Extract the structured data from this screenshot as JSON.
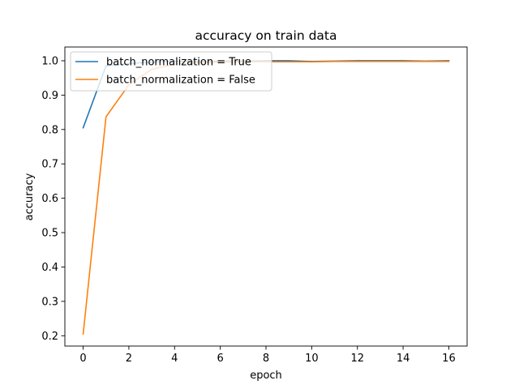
{
  "chart_data": {
    "type": "line",
    "title": "accuracy on train data",
    "xlabel": "epoch",
    "ylabel": "accuracy",
    "xlim": [
      -0.8,
      16.8
    ],
    "ylim": [
      0.17,
      1.04
    ],
    "x_ticks": [
      0,
      2,
      4,
      6,
      8,
      10,
      12,
      14,
      16
    ],
    "y_ticks": [
      0.2,
      0.3,
      0.4,
      0.5,
      0.6,
      0.7,
      0.8,
      0.9,
      1.0
    ],
    "y_tick_labels": [
      "0.2",
      "0.3",
      "0.4",
      "0.5",
      "0.6",
      "0.7",
      "0.8",
      "0.9",
      "1.0"
    ],
    "grid": false,
    "legend_position": "top-left",
    "x": [
      0,
      1,
      2,
      3,
      4,
      5,
      6,
      7,
      8,
      9,
      10,
      11,
      12,
      13,
      14,
      15,
      16
    ],
    "series": [
      {
        "name": "batch_normalization = True",
        "color": "#1f77b4",
        "values": [
          0.805,
          0.985,
          0.992,
          0.996,
          0.998,
          0.998,
          0.999,
          0.999,
          1.0,
          1.0,
          0.998,
          0.999,
          1.0,
          1.0,
          1.0,
          0.999,
          1.0
        ]
      },
      {
        "name": "batch_normalization = False",
        "color": "#ff7f0e",
        "values": [
          0.205,
          0.837,
          0.93,
          0.975,
          0.99,
          0.994,
          0.996,
          0.997,
          0.997,
          0.997,
          0.997,
          0.998,
          0.998,
          0.998,
          0.998,
          0.998,
          0.998
        ]
      }
    ]
  }
}
